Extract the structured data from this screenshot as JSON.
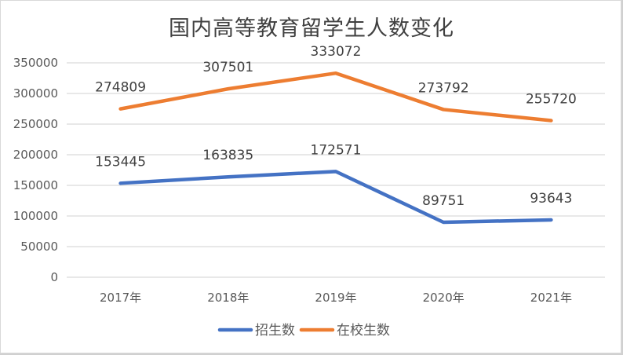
{
  "chart_data": {
    "type": "line",
    "title": "国内高等教育留学生人数变化",
    "categories": [
      "2017年",
      "2018年",
      "2019年",
      "2020年",
      "2021年"
    ],
    "series": [
      {
        "name": "招生数",
        "color": "#4472C4",
        "values": [
          153445,
          163835,
          172571,
          89751,
          93643
        ]
      },
      {
        "name": "在校生数",
        "color": "#ED7D31",
        "values": [
          274809,
          307501,
          333072,
          273792,
          255720
        ]
      }
    ],
    "xlabel": "",
    "ylabel": "",
    "ylim": [
      0,
      350000
    ],
    "yticks": [
      0,
      50000,
      100000,
      150000,
      200000,
      250000,
      300000,
      350000
    ],
    "grid": true,
    "legend_position": "bottom",
    "data_labels": true
  }
}
